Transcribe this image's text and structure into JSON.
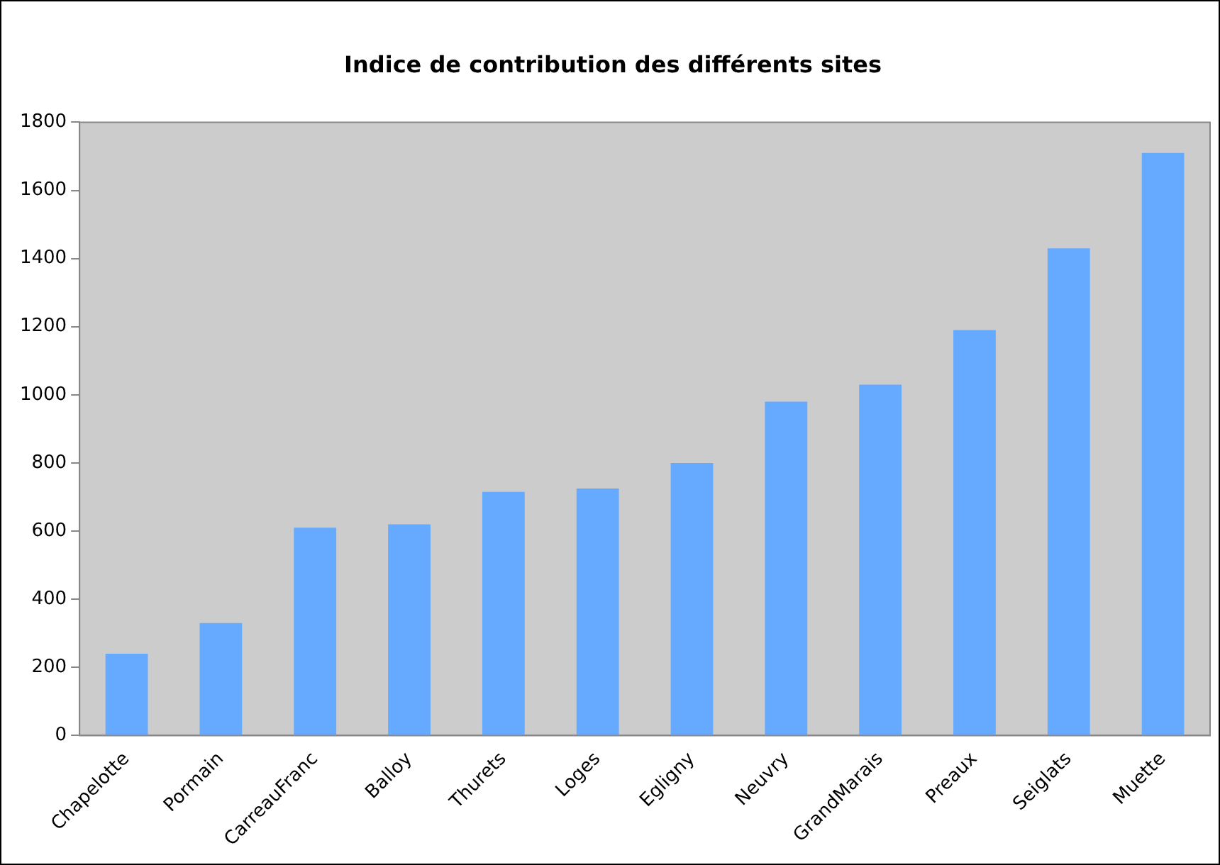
{
  "chart_data": {
    "type": "bar",
    "title": "Indice de contribution des différents sites",
    "categories": [
      "Chapelotte",
      "Pormain",
      "CarreauFranc",
      "Balloy",
      "Thurets",
      "Loges",
      "Egligny",
      "Neuvry",
      "GrandMarais",
      "Preaux",
      "Seiglats",
      "Muette"
    ],
    "values": [
      240,
      330,
      610,
      620,
      715,
      725,
      800,
      980,
      1030,
      1190,
      1430,
      1710
    ],
    "color": "#66aaff",
    "ylim": [
      0,
      1800
    ],
    "yticks": [
      0,
      200,
      400,
      600,
      800,
      1000,
      1200,
      1400,
      1600,
      1800
    ],
    "grid": false,
    "legend": false
  }
}
